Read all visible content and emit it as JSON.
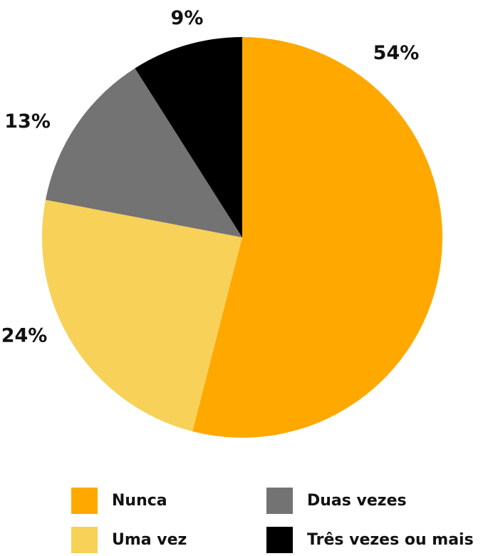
{
  "chart_data": {
    "type": "pie",
    "slices": [
      {
        "label": "Nunca",
        "value": 54,
        "value_label": "54%",
        "color": "#FFA800"
      },
      {
        "label": "Uma vez",
        "value": 24,
        "value_label": "24%",
        "color": "#F7D158"
      },
      {
        "label": "Duas vezes",
        "value": 13,
        "value_label": "13%",
        "color": "#737373"
      },
      {
        "label": "Três vezes ou mais",
        "value": 9,
        "value_label": "9%",
        "color": "#000000"
      }
    ],
    "legend_position": "bottom"
  }
}
